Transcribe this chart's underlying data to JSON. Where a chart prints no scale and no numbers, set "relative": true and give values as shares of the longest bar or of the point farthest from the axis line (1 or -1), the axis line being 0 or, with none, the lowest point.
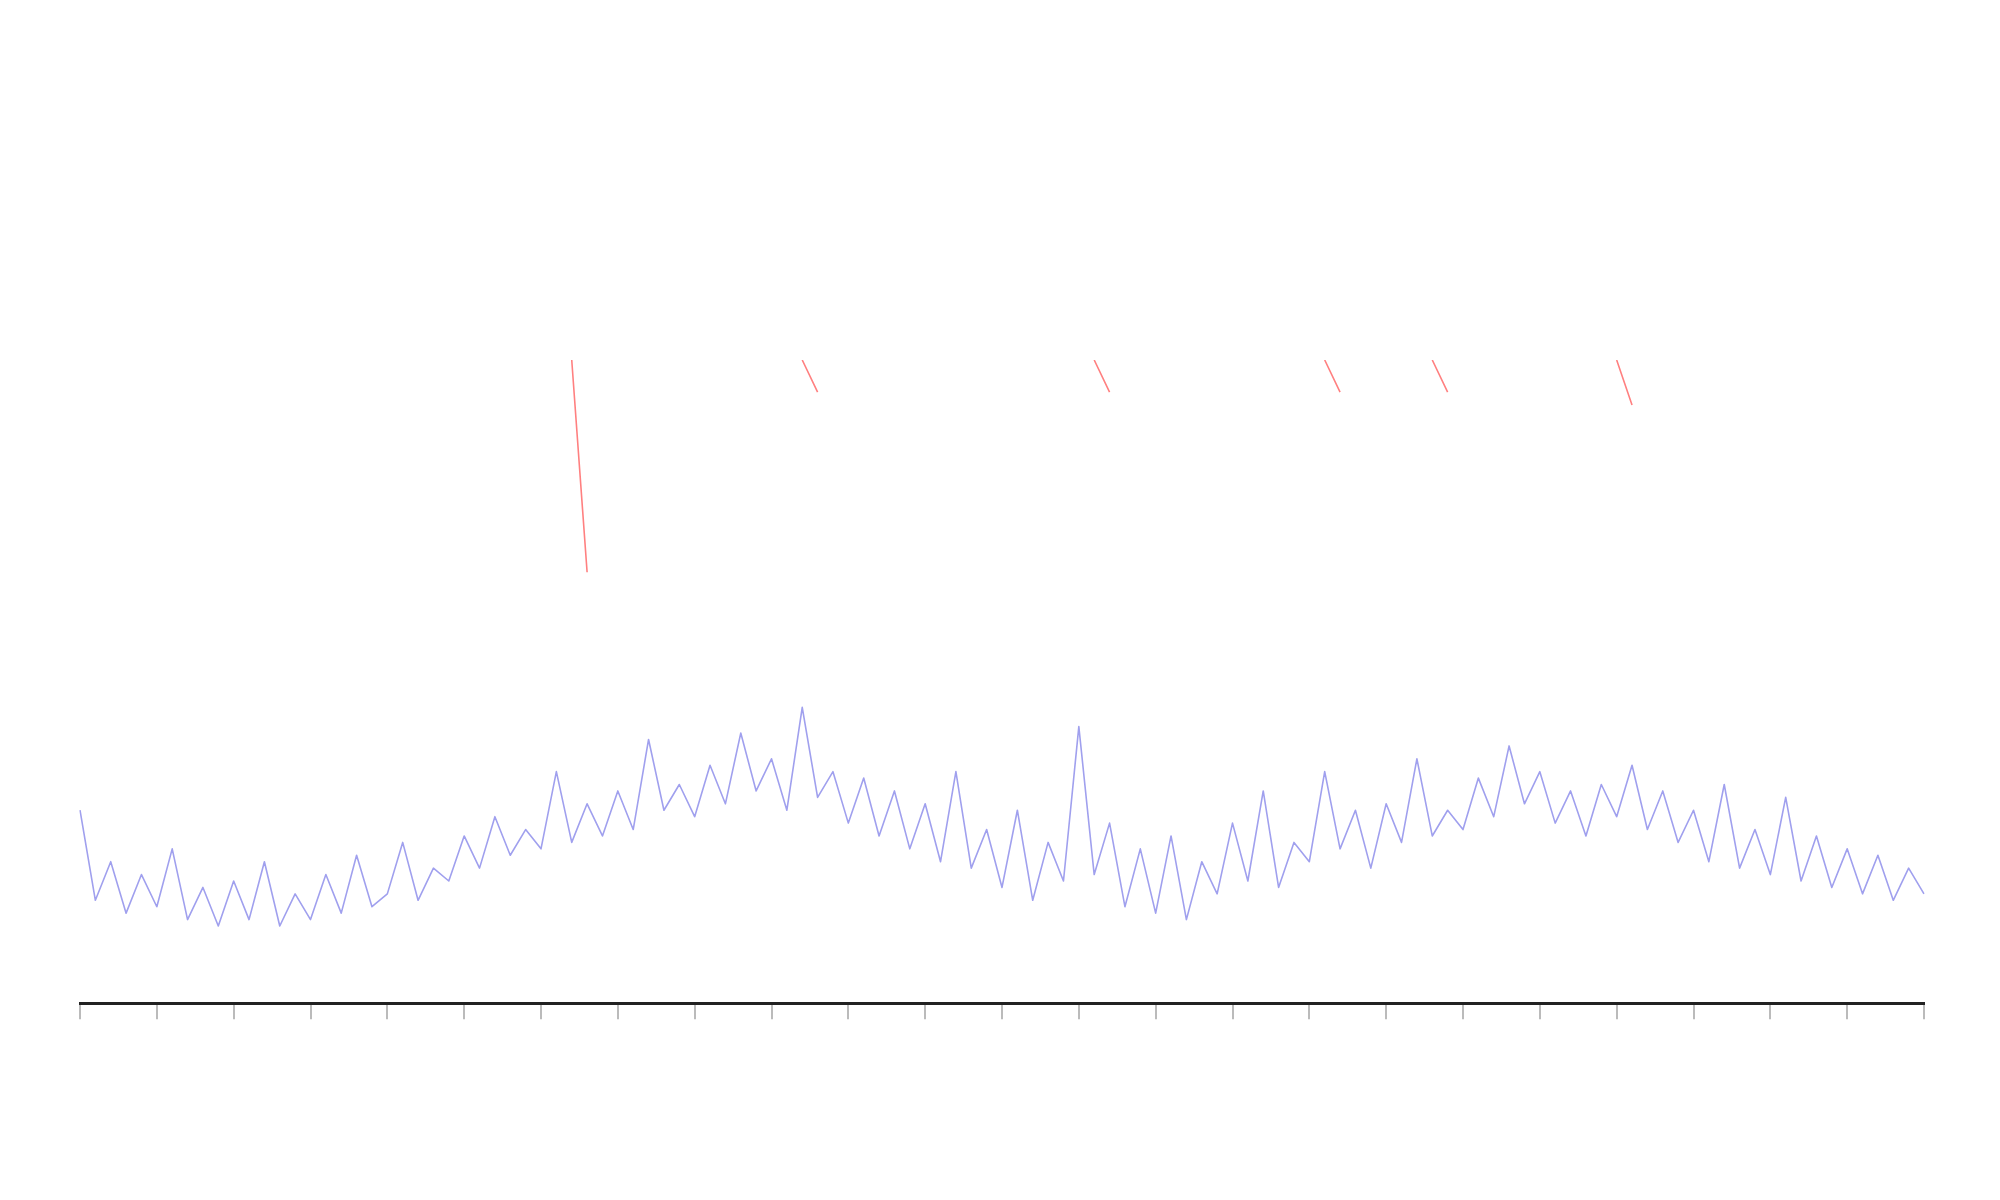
{
  "chart_data": {
    "type": "line",
    "relative": true,
    "categories": [
      null,
      null,
      null,
      null,
      null,
      null,
      null,
      null,
      null,
      null,
      null,
      null,
      null,
      null,
      null,
      null,
      null,
      null,
      null,
      null,
      null,
      null,
      null,
      null,
      null,
      null,
      null,
      null,
      null,
      null,
      null,
      null,
      null,
      null,
      null,
      null,
      null,
      null,
      null,
      null,
      null,
      null,
      null,
      null,
      null,
      null,
      null,
      null,
      null,
      null,
      null,
      null,
      null,
      null,
      null,
      null,
      null,
      null,
      null,
      null,
      null,
      null,
      null,
      null,
      null,
      null,
      null,
      null,
      null,
      null,
      null,
      null,
      null,
      null,
      null,
      null,
      null,
      null,
      null,
      null,
      null,
      null,
      null,
      null,
      null,
      null,
      null,
      null,
      null,
      null,
      null,
      null,
      null,
      null,
      null,
      null,
      null,
      null,
      null,
      null,
      null,
      null,
      null,
      null,
      null,
      null,
      null,
      null,
      null,
      null,
      null,
      null,
      null,
      null,
      null,
      null,
      null,
      null,
      null,
      null,
      null
    ],
    "legend": false,
    "marker": "none",
    "line_style": "solid",
    "series": [
      {
        "color": "#a0a0ee",
        "values": [
          0.3,
          0.16,
          0.22,
          0.14,
          0.2,
          0.15,
          0.24,
          0.13,
          0.18,
          0.12,
          0.19,
          0.13,
          0.22,
          0.12,
          0.17,
          0.13,
          0.2,
          0.14,
          0.23,
          0.15,
          0.17,
          0.25,
          0.16,
          0.21,
          0.19,
          0.26,
          0.21,
          0.29,
          0.23,
          0.27,
          0.24,
          0.36,
          0.25,
          0.31,
          0.26,
          0.33,
          0.27,
          0.41,
          0.3,
          0.34,
          0.29,
          0.37,
          0.31,
          0.42,
          0.33,
          0.38,
          0.3,
          0.46,
          0.32,
          0.36,
          0.28,
          0.35,
          0.26,
          0.33,
          0.24,
          0.31,
          0.22,
          0.36,
          0.21,
          0.27,
          0.18,
          0.3,
          0.16,
          0.25,
          0.19,
          0.43,
          0.2,
          0.28,
          0.15,
          0.24,
          0.14,
          0.26,
          0.13,
          0.22,
          0.17,
          0.28,
          0.19,
          0.33,
          0.18,
          0.25,
          0.22,
          0.36,
          0.24,
          0.3,
          0.21,
          0.31,
          0.25,
          0.38,
          0.26,
          0.3,
          0.27,
          0.35,
          0.29,
          0.4,
          0.31,
          0.36,
          0.28,
          0.33,
          0.26,
          0.34,
          0.29,
          0.37,
          0.27,
          0.33,
          0.25,
          0.3,
          0.22,
          0.34,
          0.21,
          0.27,
          0.2,
          0.32,
          0.19,
          0.26,
          0.18,
          0.24,
          0.17,
          0.23,
          0.16,
          0.21,
          0.17
        ]
      },
      {
        "color": "#ff8080",
        "values": [
          null,
          null,
          null,
          null,
          null,
          null,
          null,
          null,
          null,
          null,
          null,
          null,
          null,
          null,
          null,
          null,
          null,
          null,
          null,
          null,
          null,
          null,
          null,
          null,
          null,
          null,
          null,
          null,
          null,
          null,
          null,
          null,
          1,
          0.67,
          null,
          null,
          null,
          null,
          null,
          null,
          null,
          null,
          null,
          null,
          null,
          null,
          null,
          1,
          0.95,
          null,
          null,
          null,
          null,
          null,
          null,
          null,
          null,
          null,
          null,
          null,
          null,
          null,
          null,
          null,
          null,
          null,
          1,
          0.95,
          null,
          null,
          null,
          null,
          null,
          null,
          null,
          null,
          null,
          null,
          null,
          null,
          null,
          1,
          0.95,
          null,
          null,
          null,
          null,
          null,
          1,
          0.95,
          null,
          null,
          null,
          null,
          null,
          null,
          null,
          null,
          null,
          null,
          1,
          0.93,
          null,
          null,
          null,
          null,
          null,
          null,
          null,
          null,
          null,
          null,
          null,
          null,
          null,
          null,
          null,
          null,
          null,
          null,
          null
        ]
      }
    ]
  }
}
